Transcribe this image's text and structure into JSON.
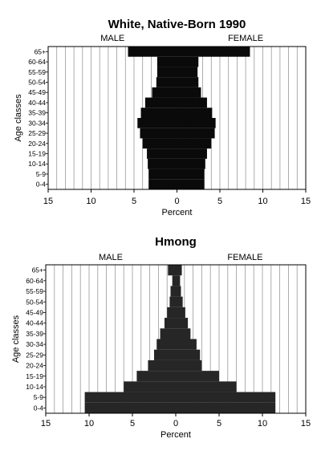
{
  "chart_data": [
    {
      "type": "bar",
      "subtype": "population-pyramid",
      "title": "White, Native-Born 1990",
      "left_label": "MALE",
      "right_label": "FEMALE",
      "xlabel": "Percent",
      "ylabel": "Age classes",
      "xlim": [
        -15,
        15
      ],
      "x_tick_labels": [
        "15",
        "10",
        "5",
        "0",
        "5",
        "10",
        "15"
      ],
      "grid": true,
      "categories": [
        "0-4",
        "5-9",
        "10-14",
        "15-19",
        "20-24",
        "25-29",
        "30-34",
        "35-39",
        "40-44",
        "45-49",
        "50-54",
        "55-59",
        "60-64",
        "65+"
      ],
      "series": [
        {
          "name": "MALE",
          "values": [
            3.3,
            3.3,
            3.4,
            3.5,
            4.0,
            4.3,
            4.6,
            4.2,
            3.7,
            2.9,
            2.4,
            2.3,
            2.3,
            5.7
          ],
          "color": "#0a0a0a"
        },
        {
          "name": "FEMALE",
          "values": [
            3.2,
            3.2,
            3.3,
            3.5,
            4.0,
            4.4,
            4.5,
            4.1,
            3.5,
            2.8,
            2.5,
            2.4,
            2.5,
            8.5
          ],
          "color": "#0a0a0a"
        }
      ]
    },
    {
      "type": "bar",
      "subtype": "population-pyramid",
      "title": "Hmong",
      "left_label": "MALE",
      "right_label": "FEMALE",
      "xlabel": "Percent",
      "ylabel": "Age classes",
      "xlim": [
        -15,
        15
      ],
      "x_tick_labels": [
        "15",
        "10",
        "5",
        "0",
        "5",
        "10",
        "15"
      ],
      "grid": true,
      "categories": [
        "0-4",
        "5-9",
        "10-14",
        "15-19",
        "20-24",
        "25-29",
        "30-34",
        "35-39",
        "40-44",
        "45-49",
        "50-54",
        "55-59",
        "60-64",
        "65+"
      ],
      "series": [
        {
          "name": "MALE",
          "values": [
            10.5,
            10.5,
            6.0,
            4.5,
            3.2,
            2.5,
            2.2,
            1.8,
            1.3,
            1.0,
            0.7,
            0.6,
            0.4,
            0.9
          ],
          "color": "#262626"
        },
        {
          "name": "FEMALE",
          "values": [
            11.5,
            11.5,
            7.0,
            5.0,
            3.0,
            2.8,
            2.4,
            1.7,
            1.4,
            1.1,
            0.8,
            0.6,
            0.5,
            0.7
          ],
          "color": "#262626"
        }
      ]
    }
  ]
}
